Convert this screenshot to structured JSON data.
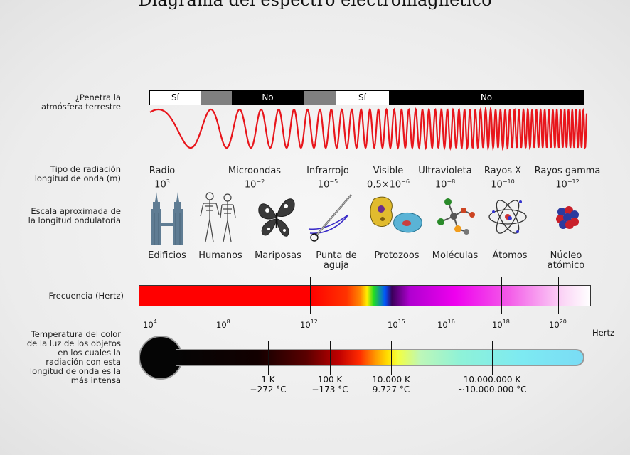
{
  "title": "Diagrama del espectro electromagnético",
  "labels": {
    "atmosphere": "¿Penetra la atmósfera terrestre",
    "radiation_type": "Tipo de radiación longitud de onda (m)",
    "scale": "Escala aproximada de la longitud ondulatoria",
    "frequency": "Frecuencia (Hertz)",
    "temperature": "Temperatura del color de la luz de los objetos en los cuales la radiación con esta longitud de onda es la más intensa"
  },
  "atmosphere_bar": [
    {
      "label": "Sí",
      "color": "#ffffff",
      "text_color": "#000000"
    },
    {
      "label": "",
      "color": "#808080",
      "text_color": "#000000"
    },
    {
      "label": "No",
      "color": "#000000",
      "text_color": "#ffffff"
    },
    {
      "label": "",
      "color": "#808080",
      "text_color": "#000000"
    },
    {
      "label": "Sí",
      "color": "#ffffff",
      "text_color": "#000000"
    },
    {
      "label": "No",
      "color": "#000000",
      "text_color": "#ffffff"
    }
  ],
  "radiation_types": [
    {
      "name": "Radio",
      "base": "10",
      "exp": "3"
    },
    {
      "name": "Microondas",
      "base": "10",
      "exp": "−2"
    },
    {
      "name": "Infrarrojo",
      "base": "10",
      "exp": "−5"
    },
    {
      "name": "Visible",
      "base": "0,5×10",
      "exp": "−6"
    },
    {
      "name": "Ultravioleta",
      "base": "10",
      "exp": "−8"
    },
    {
      "name": "Rayos X",
      "base": "10",
      "exp": "−10"
    },
    {
      "name": "Rayos gamma",
      "base": "10",
      "exp": "−12"
    }
  ],
  "scale_items": [
    {
      "name": "Edificios",
      "icon": "buildings-icon"
    },
    {
      "name": "Humanos",
      "icon": "humans-icon"
    },
    {
      "name": "Mariposas",
      "icon": "butterfly-icon"
    },
    {
      "name": "Punta de aguja",
      "icon": "needle-icon"
    },
    {
      "name": "Protozoos",
      "icon": "protozoa-icon"
    },
    {
      "name": "Moléculas",
      "icon": "molecule-icon"
    },
    {
      "name": "Átomos",
      "icon": "atom-icon"
    },
    {
      "name": "Núcleo atómico",
      "icon": "nucleus-icon"
    }
  ],
  "frequency_ticks": [
    {
      "base": "10",
      "exp": "4"
    },
    {
      "base": "10",
      "exp": "8"
    },
    {
      "base": "10",
      "exp": "12"
    },
    {
      "base": "10",
      "exp": "15"
    },
    {
      "base": "10",
      "exp": "16"
    },
    {
      "base": "10",
      "exp": "18"
    },
    {
      "base": "10",
      "exp": "20"
    }
  ],
  "frequency_unit": "Hertz",
  "temperature_ticks": [
    {
      "k": "1 K",
      "c": "−272 °C"
    },
    {
      "k": "100 K",
      "c": "−173 °C"
    },
    {
      "k": "10.000 K",
      "c": "9.727 °C"
    },
    {
      "k": "10.000.000 K",
      "c": "~10.000.000 °C"
    }
  ],
  "colors": {
    "wave": "#e8151b",
    "bar_black": "#000000",
    "bar_gray": "#808080"
  }
}
